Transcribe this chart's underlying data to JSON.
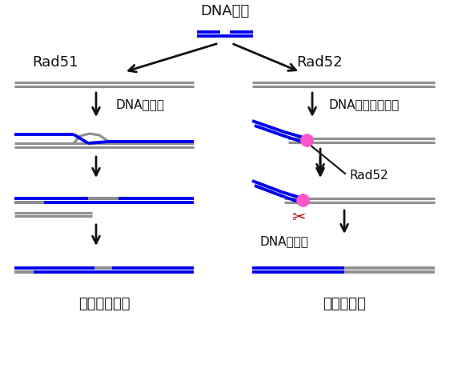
{
  "title_top": "DNA損傷",
  "label_rad51": "Rad51",
  "label_rad52_title": "Rad52",
  "label_dna_exchange": "DNA鎖交換",
  "label_dna_annealing": "DNAアニーリング",
  "label_rad52_protein": "Rad52",
  "label_dna_cut": "DNAの切断",
  "label_maintain": "染色体の維持",
  "label_abnormal": "染色体異常",
  "blue": "#0000EE",
  "gray": "#909090",
  "pink": "#FF55CC",
  "red": "#CC0000",
  "black": "#111111",
  "white": "#FFFFFF",
  "font": "IPAexGothic",
  "font_fallback": "Noto Sans CJK JP"
}
